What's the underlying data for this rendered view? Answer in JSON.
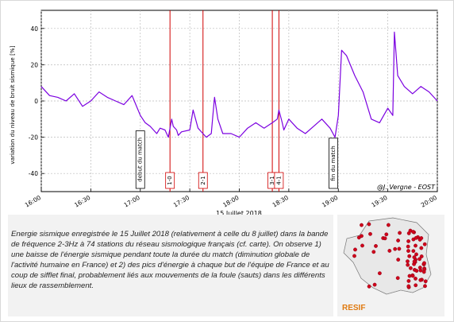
{
  "chart_data": {
    "type": "line",
    "xlabel": "15 Juillet 2018",
    "ylabel": "variation du niveau de bruit sismique [%]",
    "ylim": [
      -50,
      50
    ],
    "xlim": [
      "16:00",
      "20:00"
    ],
    "grid": true,
    "x_ticks": [
      "16:00",
      "16:30",
      "17:00",
      "17:30",
      "18:00",
      "18:30",
      "19:00",
      "19:30",
      "20:00"
    ],
    "y_ticks": [
      -40,
      -20,
      0,
      20,
      40
    ],
    "credit": "@J. Vergne - EOST",
    "series": [
      {
        "x": [
          "16:00",
          "16:05",
          "16:10",
          "16:15",
          "16:20",
          "16:25",
          "16:30",
          "16:35",
          "16:40",
          "16:45",
          "16:50",
          "16:55",
          "17:00",
          "17:03",
          "17:06",
          "17:10",
          "17:12",
          "17:15",
          "17:17",
          "17:19",
          "17:20",
          "17:22",
          "17:23",
          "17:25",
          "17:30",
          "17:32",
          "17:35",
          "17:40",
          "17:43",
          "17:44",
          "17:45",
          "17:47",
          "17:50",
          "17:55",
          "18:00",
          "18:05",
          "18:10",
          "18:15",
          "18:20",
          "18:23",
          "18:24",
          "18:26",
          "18:27",
          "18:30",
          "18:35",
          "18:40",
          "18:45",
          "18:50",
          "18:55",
          "18:58",
          "19:00",
          "19:02",
          "19:05",
          "19:10",
          "19:15",
          "19:20",
          "19:25",
          "19:30",
          "19:33",
          "19:34",
          "19:36",
          "19:40",
          "19:45",
          "19:50",
          "19:55",
          "20:00"
        ],
        "y": [
          8,
          3,
          2,
          0,
          4,
          -3,
          0,
          5,
          2,
          0,
          -2,
          3,
          -8,
          -12,
          -14,
          -18,
          -15,
          -16,
          -20,
          -10,
          -14,
          -16,
          -19,
          -17,
          -16,
          -5,
          -15,
          -20,
          -18,
          -8,
          2,
          -10,
          -18,
          -18,
          -20,
          -15,
          -12,
          -15,
          -12,
          -10,
          -5,
          -12,
          -16,
          -10,
          -15,
          -18,
          -14,
          -10,
          -15,
          -20,
          -8,
          28,
          25,
          14,
          5,
          -10,
          -12,
          -4,
          -8,
          38,
          14,
          8,
          4,
          8,
          5,
          0
        ]
      }
    ],
    "events": [
      {
        "label": "debut du match",
        "time": "17:00",
        "line": false
      },
      {
        "label": "1-0",
        "time": "17:18",
        "line": true
      },
      {
        "label": "2-1",
        "time": "17:38",
        "line": true
      },
      {
        "label": "3-1",
        "time": "18:20",
        "line": true
      },
      {
        "label": "4-1",
        "time": "18:24",
        "line": true
      },
      {
        "label": "fin du match",
        "time": "18:57",
        "line": false
      }
    ]
  },
  "caption": "Energie sismique enregistrée le 15 Juillet 2018 (relativement à celle du 8 juillet) dans la bande de fréquence 2-3Hz à 74 stations du réseau sismologique français (cf. carte). On observe 1) une baisse de l'énergie sismique pendant toute la durée du match (diminution globale de l'activité humaine en France) et 2) des pics d'énergie à chaque but de l'équipe de France et au coup de sifflet final, probablement liés aux mouvements de la foule (sauts) dans les différents lieux de rassemblement.",
  "map": {
    "logo": "RESIF",
    "station_count": 74,
    "colors": {
      "station": "#d0021b",
      "land": "#e8e8e8",
      "border": "#777777"
    }
  },
  "colors": {
    "series": "#7b00e0",
    "event_line": "#d10000",
    "grid": "#bbbbbb"
  }
}
